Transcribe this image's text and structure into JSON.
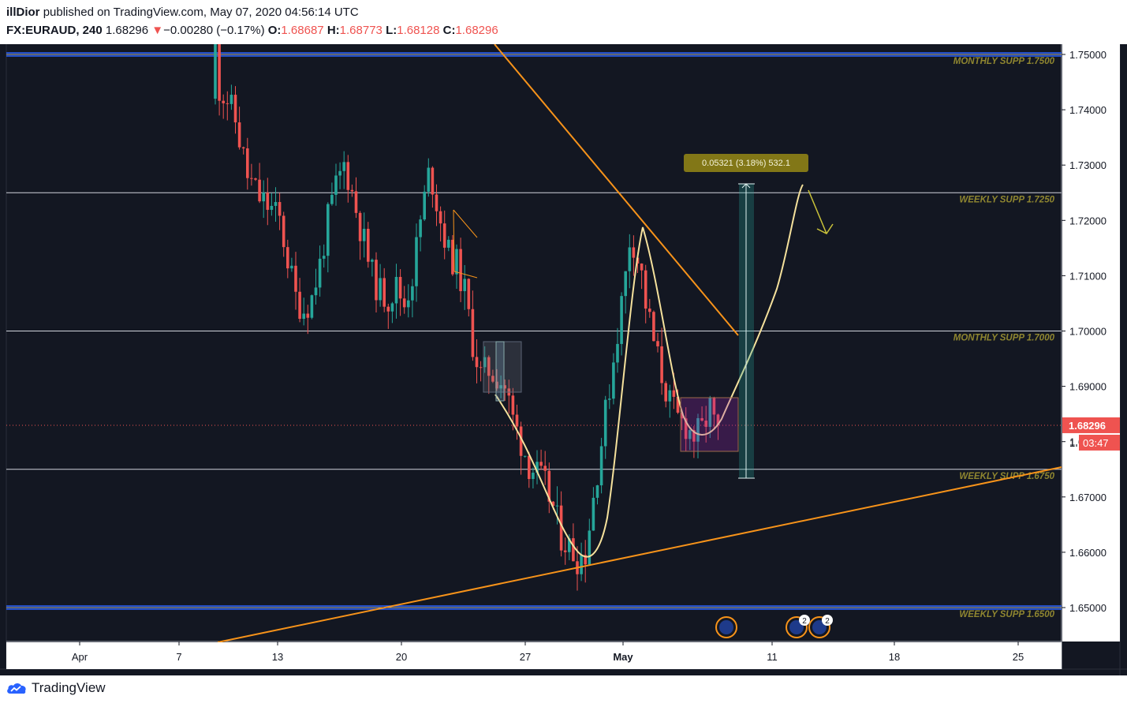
{
  "header": {
    "author": "illDior",
    "published_text": "published on TradingView.com, May 07, 2020 04:56:14 UTC",
    "symbol": "FX:EURAUD, 240",
    "last": "1.68296",
    "change_arrow": "▼",
    "change": "−0.00280 (−0.17%)",
    "open_label": "O:",
    "open": "1.68687",
    "high_label": "H:",
    "high": "1.68773",
    "low_label": "L:",
    "low": "1.68128",
    "close_label": "C:",
    "close": "1.68296"
  },
  "footer": {
    "brand": "TradingView",
    "logo_icon": "tradingview-cloud-icon"
  },
  "colors": {
    "background": "#131722",
    "up": "#26a69a",
    "down": "#ef5350",
    "trendline": "#f7931a",
    "projection": "#f5e19c",
    "level_label": "#8f8630",
    "price_badge": "#ef5350"
  },
  "chart_data": {
    "type": "candlestick",
    "x_ticks": [
      "Apr",
      "7",
      "13",
      "20",
      "27",
      "May",
      "11",
      "18",
      "25"
    ],
    "y_ticks": [
      "1.75000",
      "1.74000",
      "1.73000",
      "1.72000",
      "1.71000",
      "1.70000",
      "1.69000",
      "1.68000",
      "1.67000",
      "1.66000",
      "1.65000"
    ],
    "ylim": [
      1.644,
      1.7515
    ],
    "last_price": "1.68296",
    "countdown": "03:47",
    "countdown_prefix": "1.",
    "levels": [
      {
        "label": "MONTHLY SUPP 1.7500",
        "price": 1.75,
        "style": "double-blue"
      },
      {
        "label": "WEEKLY SUPP 1.7250",
        "price": 1.725,
        "style": "white"
      },
      {
        "label": "MONTHLY SUPP 1.7000",
        "price": 1.7,
        "style": "white"
      },
      {
        "label": "WEEKLY SUPP 1.6750",
        "price": 1.675,
        "style": "white"
      },
      {
        "label": "WEEKLY SUPP 1.6500",
        "price": 1.65,
        "style": "double-blue"
      }
    ],
    "measure_label": "0.05321 (3.18%) 532.1",
    "event_badges": [
      "2",
      "2"
    ],
    "event_icons": [
      "eu-flag-icon",
      "au-flag-icon",
      "au-flag-icon"
    ],
    "anchors": [
      [
        0,
        1.76
      ],
      [
        2,
        1.744
      ],
      [
        4,
        1.742
      ],
      [
        6,
        1.738
      ],
      [
        9,
        1.728
      ],
      [
        12,
        1.724
      ],
      [
        15,
        1.722
      ],
      [
        17,
        1.72
      ],
      [
        19,
        1.713
      ],
      [
        21,
        1.706
      ],
      [
        23,
        1.704
      ],
      [
        25,
        1.706
      ],
      [
        27,
        1.712
      ],
      [
        29,
        1.72
      ],
      [
        31,
        1.726
      ],
      [
        33,
        1.73
      ],
      [
        34,
        1.728
      ],
      [
        36,
        1.722
      ],
      [
        38,
        1.716
      ],
      [
        40,
        1.71
      ],
      [
        42,
        1.707
      ],
      [
        44,
        1.706
      ],
      [
        46,
        1.708
      ],
      [
        48,
        1.705
      ],
      [
        50,
        1.71
      ],
      [
        52,
        1.72
      ],
      [
        54,
        1.728
      ],
      [
        55,
        1.727
      ],
      [
        57,
        1.72
      ],
      [
        59,
        1.714
      ],
      [
        61,
        1.712
      ],
      [
        63,
        1.707
      ],
      [
        65,
        1.698
      ],
      [
        67,
        1.692
      ],
      [
        69,
        1.693
      ],
      [
        71,
        1.692
      ],
      [
        73,
        1.69
      ],
      [
        75,
        1.684
      ],
      [
        77,
        1.68
      ],
      [
        79,
        1.676
      ],
      [
        81,
        1.674
      ],
      [
        83,
        1.672
      ],
      [
        85,
        1.668
      ],
      [
        87,
        1.663
      ],
      [
        89,
        1.661
      ],
      [
        91,
        1.659
      ],
      [
        93,
        1.66
      ],
      [
        95,
        1.67
      ],
      [
        97,
        1.68
      ],
      [
        99,
        1.69
      ],
      [
        101,
        1.7
      ],
      [
        103,
        1.71
      ],
      [
        104,
        1.7165
      ],
      [
        105,
        1.716
      ],
      [
        107,
        1.71
      ],
      [
        108,
        1.705
      ],
      [
        110,
        1.698
      ],
      [
        112,
        1.692
      ],
      [
        114,
        1.687
      ],
      [
        116,
        1.684
      ],
      [
        118,
        1.683
      ],
      [
        120,
        1.681
      ],
      [
        122,
        1.682
      ],
      [
        124,
        1.686
      ],
      [
        125,
        1.683
      ]
    ]
  }
}
